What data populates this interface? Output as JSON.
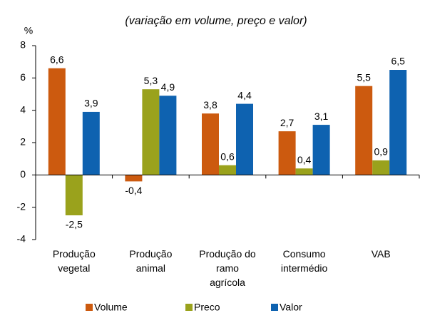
{
  "chart_data": {
    "type": "bar",
    "title": "(variação em volume, preço e valor)",
    "y_label": "%",
    "categories": [
      "Produção\nvegetal",
      "Produção\nanimal",
      "Produção do\nramo\nagrícola",
      "Consumo\nintermédio",
      "VAB"
    ],
    "series": [
      {
        "name": "Volume",
        "color": "#cc5a0f",
        "values": [
          6.6,
          -0.4,
          3.8,
          2.7,
          5.5
        ],
        "value_labels": [
          "6,6",
          "-0,4",
          "3,8",
          "2,7",
          "5,5"
        ]
      },
      {
        "name": "Preco",
        "color": "#9aa21c",
        "values": [
          -2.5,
          5.3,
          0.6,
          0.4,
          0.9
        ],
        "value_labels": [
          "-2,5",
          "5,3",
          "0,6",
          "0,4",
          "0,9"
        ]
      },
      {
        "name": "Valor",
        "color": "#0e62b0",
        "values": [
          3.9,
          4.9,
          4.4,
          3.1,
          6.5
        ],
        "value_labels": [
          "3,9",
          "4,9",
          "4,4",
          "3,1",
          "6,5"
        ]
      }
    ],
    "ylim": [
      -4,
      8
    ],
    "yticks": [
      -4,
      -2,
      0,
      2,
      4,
      6,
      8
    ],
    "grid": false,
    "legend": "bottom"
  }
}
